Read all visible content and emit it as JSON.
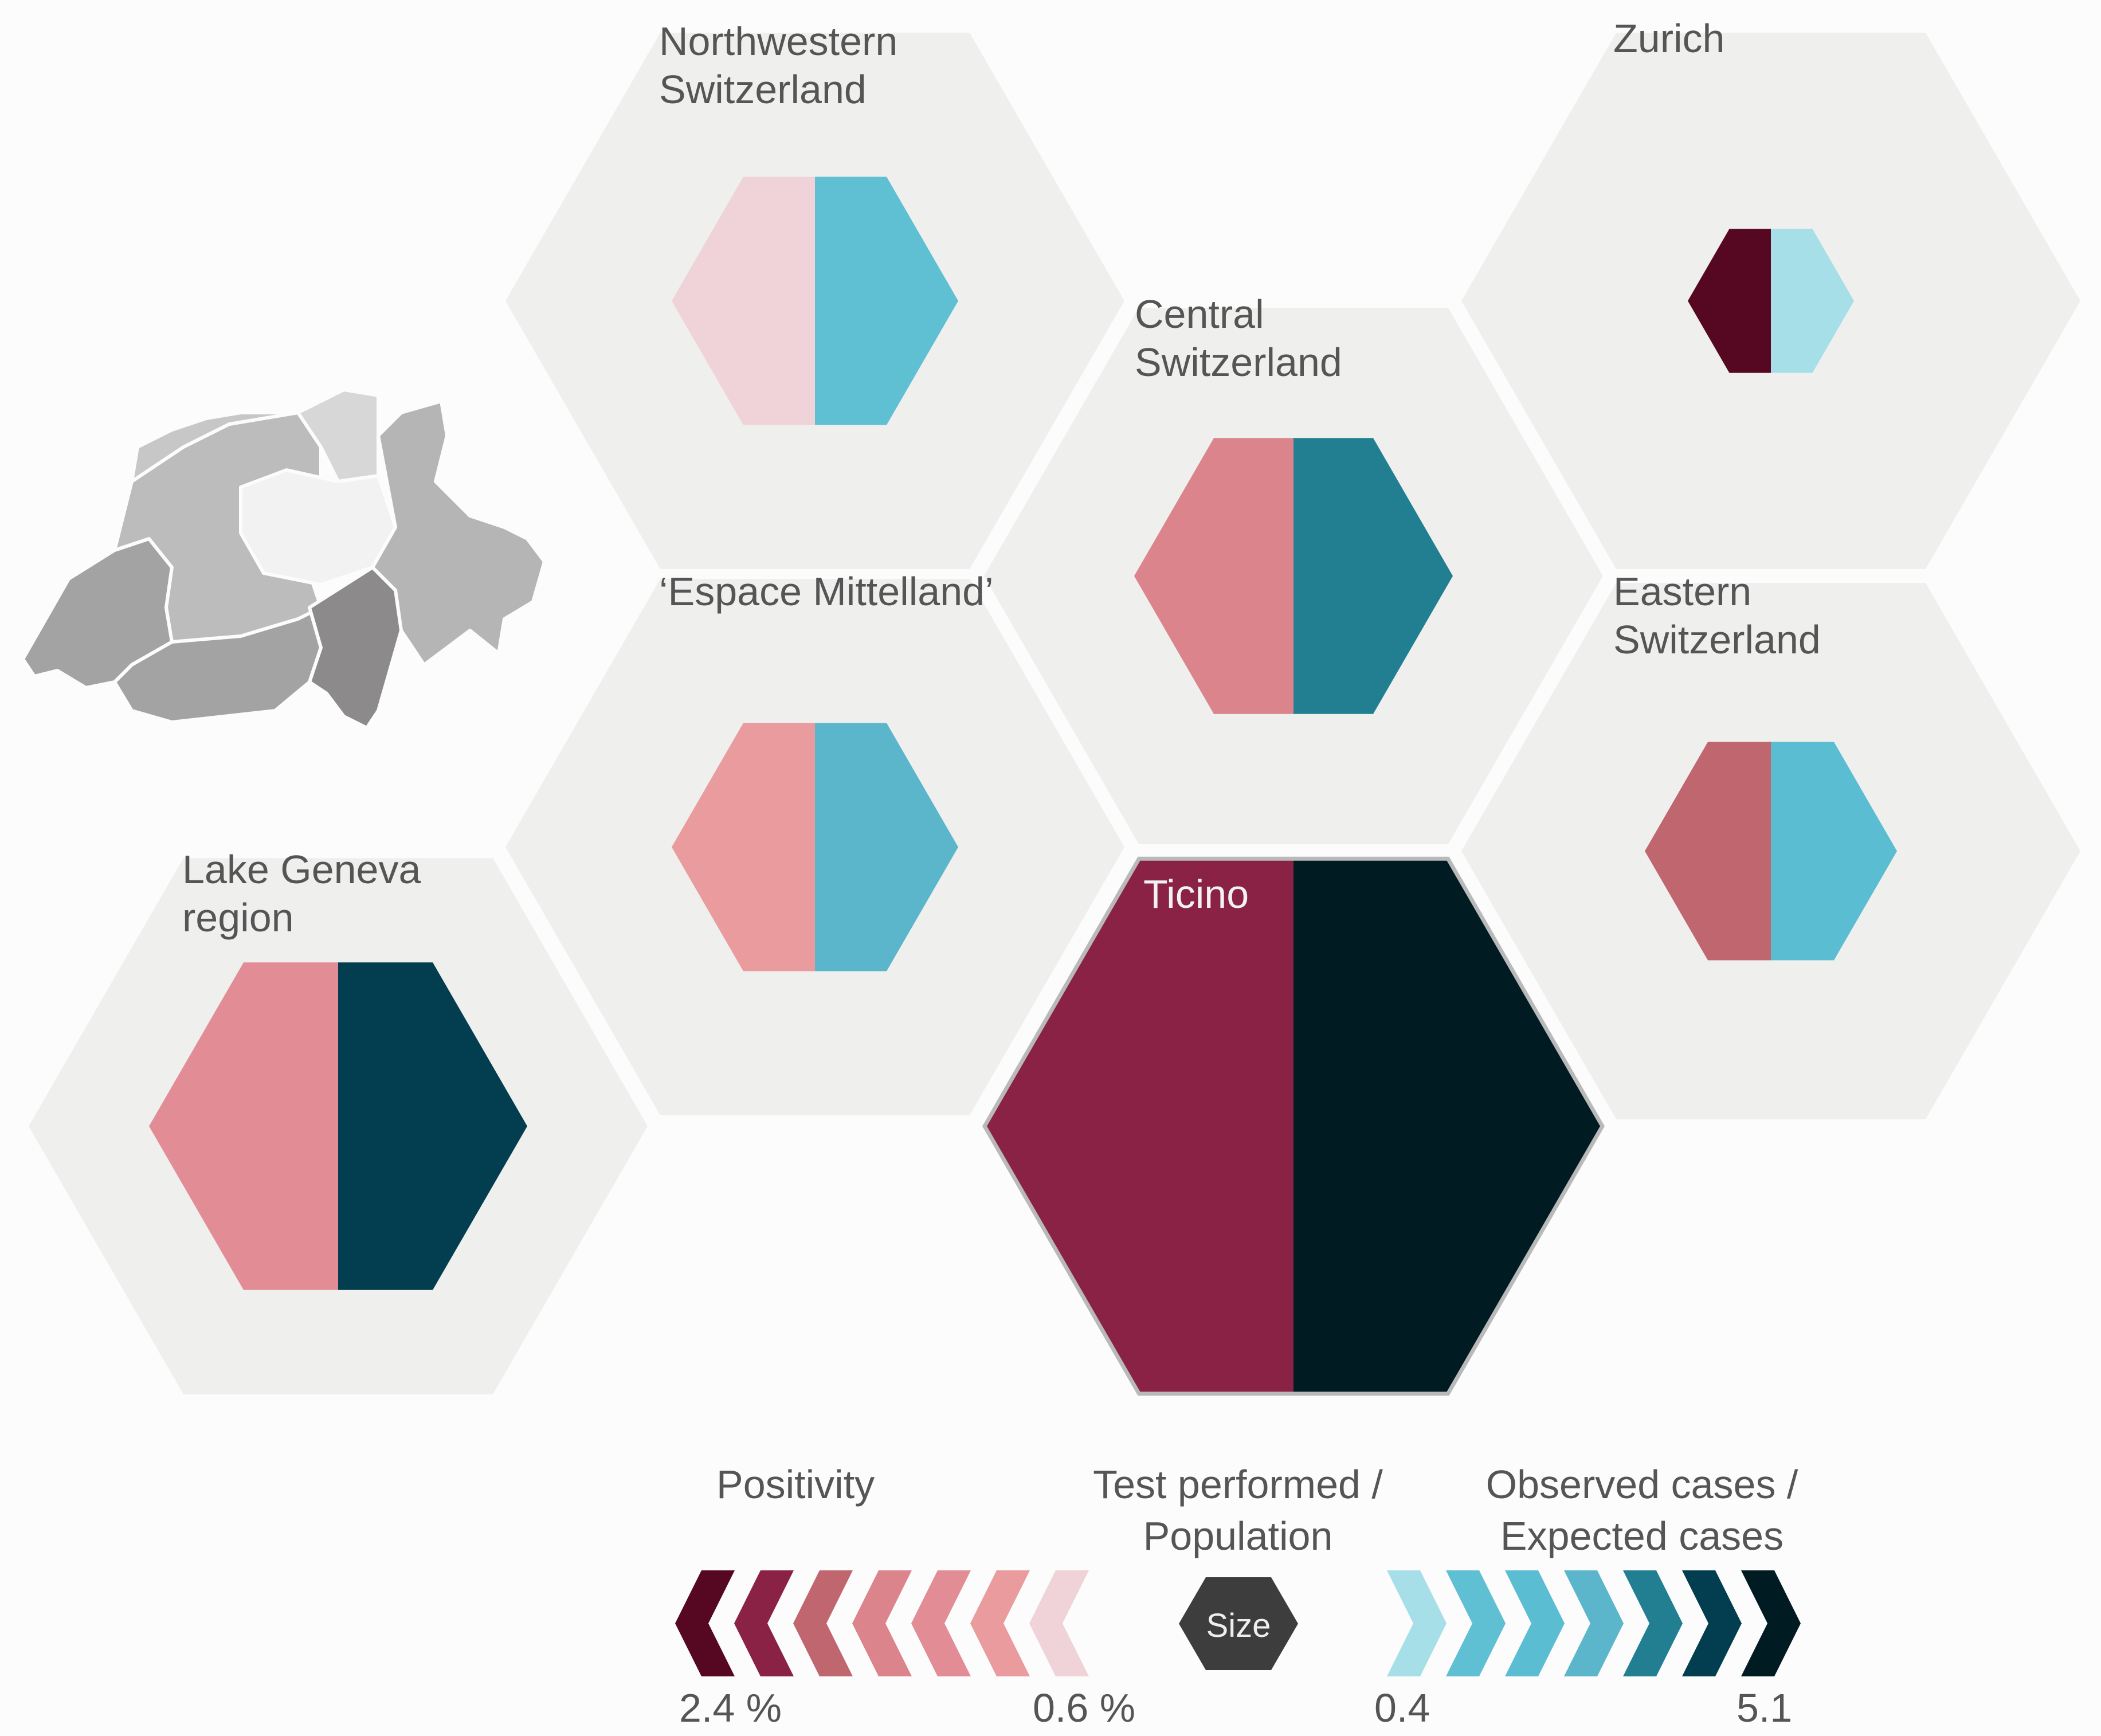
{
  "regions": [
    {
      "id": "northwestern",
      "name": "Northwestern\nSwitzerland",
      "positivity_color": "#efd3d8",
      "ratio_color": "#5fbfd3"
    },
    {
      "id": "zurich",
      "name": "Zurich",
      "positivity_color": "#560822",
      "ratio_color": "#a6dfe8"
    },
    {
      "id": "central",
      "name": "Central\nSwitzerland",
      "positivity_color": "#dc848b",
      "ratio_color": "#217f91"
    },
    {
      "id": "espace-mittelland",
      "name": "‘Espace Mittelland’",
      "positivity_color": "#e99b9d",
      "ratio_color": "#5bb6cc"
    },
    {
      "id": "eastern",
      "name": "Eastern\nSwitzerland",
      "positivity_color": "#c0666f",
      "ratio_color": "#5bbdd2"
    },
    {
      "id": "lake-geneva",
      "name": "Lake Geneva\nregion",
      "positivity_color": "#e28d95",
      "ratio_color": "#023e4f"
    },
    {
      "id": "ticino",
      "name": "Ticino",
      "positivity_color": "#8a2245",
      "ratio_color": "#011b22"
    }
  ],
  "legend": {
    "positivity": {
      "title": "Positivity",
      "min_label": "2.4 %",
      "max_label": "0.6 %",
      "colors": [
        "#560822",
        "#8a2245",
        "#c0666f",
        "#dc848b",
        "#e28d95",
        "#e99b9d",
        "#efd3d8"
      ]
    },
    "size": {
      "title": "Test performed /\nPopulation",
      "symbol_text": "Size",
      "color": "#3d3d3d"
    },
    "ratio": {
      "title": "Observed cases /\nExpected cases",
      "min_label": "0.4",
      "max_label": "5.1",
      "colors": [
        "#a6dfe8",
        "#5fbfd3",
        "#5bbdd2",
        "#5bb6cc",
        "#217f91",
        "#023e4f",
        "#011b22"
      ]
    }
  },
  "map": {
    "colors": [
      "#c8c7c8",
      "#d8d7d8",
      "#f2f2f2",
      "#b6b5b6",
      "#a4a3a4",
      "#8d8a8c",
      "#bdbcbd"
    ]
  },
  "palette": {
    "background": "#fcfcfc",
    "cell": "#efefee",
    "ticino_outline": "#b9b9b9"
  }
}
